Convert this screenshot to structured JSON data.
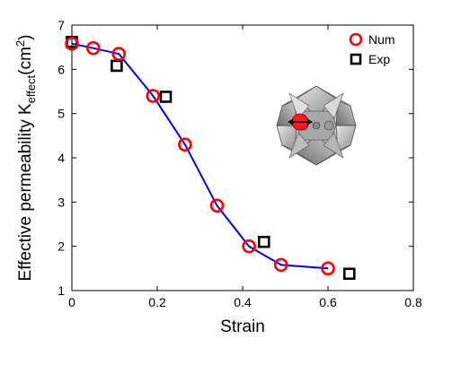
{
  "chart_data": {
    "type": "scatter",
    "xlabel": "Strain",
    "ylabel": {
      "prefix": "Effective permeability K",
      "subscript": "effect",
      "unit_open": "(cm",
      "superscript": "2",
      "unit_close": ")"
    },
    "xlim": [
      0,
      0.8
    ],
    "ylim": [
      1,
      7
    ],
    "xticks": [
      "0",
      "0.2",
      "0.4",
      "0.6",
      "0.8"
    ],
    "yticks": [
      "1",
      "2",
      "3",
      "4",
      "5",
      "6",
      "7"
    ],
    "legend_position": "top-right",
    "series": [
      {
        "name": "Num",
        "marker": "circle",
        "color": "#ff0000",
        "line_color": "#0000ff",
        "x": [
          0.0,
          0.05,
          0.11,
          0.19,
          0.265,
          0.34,
          0.415,
          0.49,
          0.6
        ],
        "y": [
          6.58,
          6.48,
          6.35,
          5.4,
          4.3,
          2.92,
          2.0,
          1.58,
          1.5
        ]
      },
      {
        "name": "Exp",
        "marker": "square",
        "color": "#000000",
        "x": [
          0.0,
          0.105,
          0.22,
          0.45,
          0.65
        ],
        "y": [
          6.62,
          6.08,
          5.38,
          2.1,
          1.38
        ]
      }
    ],
    "inset": {
      "icon": "lattice-structure-icon"
    }
  }
}
